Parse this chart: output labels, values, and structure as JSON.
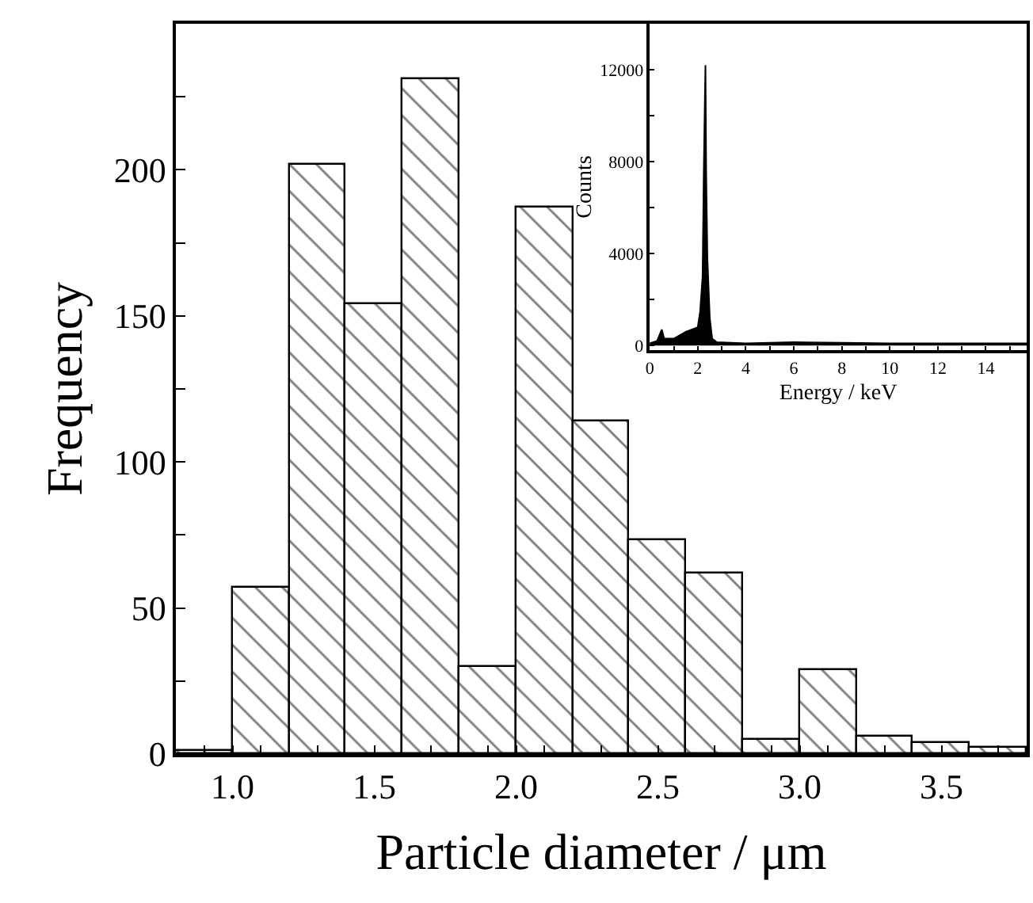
{
  "chart_data": [
    {
      "type": "histogram",
      "xlabel": "Particle diameter / μm",
      "ylabel": "Frequency",
      "color": "#000000",
      "bins": [
        0.8,
        1.0,
        1.2,
        1.4,
        1.6,
        1.8,
        2.0,
        2.2,
        2.4,
        2.6,
        2.8,
        3.0,
        3.2,
        3.4,
        3.6,
        3.8
      ],
      "values": [
        1,
        57,
        202,
        154,
        231,
        30,
        187,
        114,
        73,
        62,
        5,
        29,
        6,
        4,
        2
      ],
      "xlim": [
        0.8,
        3.8
      ],
      "xticks": [
        {
          "value": 0.9,
          "label": null
        },
        {
          "value": 1.0,
          "label": "1.0"
        },
        {
          "value": 1.1,
          "label": null
        },
        {
          "value": 1.3,
          "label": null
        },
        {
          "value": 1.5,
          "label": "1.5"
        },
        {
          "value": 1.7,
          "label": null
        },
        {
          "value": 1.9,
          "label": null
        },
        {
          "value": 2.0,
          "label": "2.0"
        },
        {
          "value": 2.1,
          "label": null
        },
        {
          "value": 2.3,
          "label": null
        },
        {
          "value": 2.5,
          "label": "2.5"
        },
        {
          "value": 2.7,
          "label": null
        },
        {
          "value": 2.9,
          "label": null
        },
        {
          "value": 3.0,
          "label": "3.0"
        },
        {
          "value": 3.1,
          "label": null
        },
        {
          "value": 3.3,
          "label": null
        },
        {
          "value": 3.5,
          "label": "3.5"
        },
        {
          "value": 3.7,
          "label": null
        }
      ],
      "ylim": [
        0,
        250
      ],
      "yticks": [
        0,
        {
          "value": 25,
          "label": null
        },
        50,
        {
          "value": 75,
          "label": null
        },
        100,
        {
          "value": 125,
          "label": null
        },
        150,
        {
          "value": 175,
          "label": null
        },
        200,
        {
          "value": 225,
          "label": null
        }
      ]
    },
    {
      "type": "area",
      "xlabel": "Energy / keV",
      "ylabel": "Counts",
      "color": "#000000",
      "x": [
        0,
        0.3,
        0.5,
        0.6,
        1.0,
        1.5,
        2.0,
        2.1,
        2.2,
        2.25,
        2.3,
        2.32,
        2.35,
        2.4,
        2.5,
        2.6,
        2.8,
        4,
        6,
        8,
        10,
        12,
        14,
        15.7
      ],
      "values": [
        100,
        200,
        700,
        300,
        300,
        600,
        800,
        1500,
        3000,
        7500,
        11000,
        12200,
        7500,
        3800,
        1200,
        300,
        150,
        100,
        150,
        120,
        100,
        100,
        100,
        100
      ],
      "xlim": [
        0,
        15.7
      ],
      "xticks": [
        0,
        {
          "value": 1,
          "label": null
        },
        2,
        {
          "value": 3,
          "label": null
        },
        4,
        {
          "value": 5,
          "label": null
        },
        6,
        {
          "value": 7,
          "label": null
        },
        8,
        {
          "value": 9,
          "label": null
        },
        10,
        {
          "value": 11,
          "label": null
        },
        12,
        {
          "value": 13,
          "label": null
        },
        14,
        {
          "value": 15,
          "label": null
        }
      ],
      "ylim": [
        -200,
        14000
      ],
      "yticks": [
        0,
        {
          "value": 2000,
          "label": null
        },
        4000,
        {
          "value": 6000,
          "label": null
        },
        8000,
        {
          "value": 10000,
          "label": null
        },
        12000
      ]
    }
  ]
}
